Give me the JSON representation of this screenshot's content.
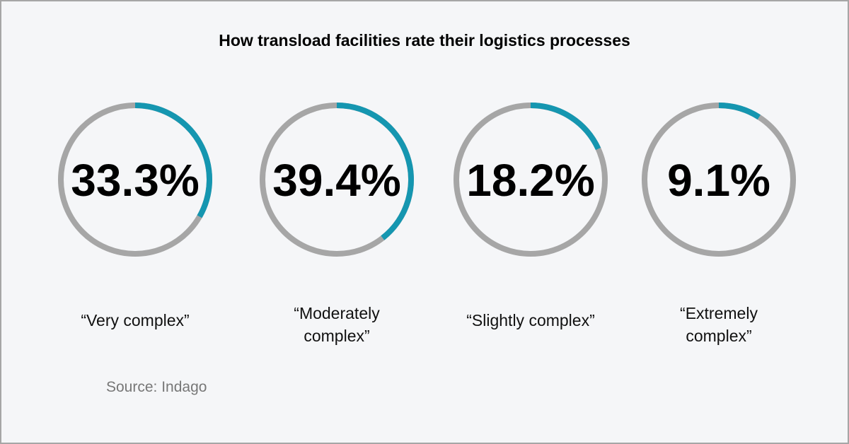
{
  "title": "How transload facilities rate their logistics processes",
  "source": "Source: Indago",
  "colors": {
    "accent": "#1596b0",
    "track": "#a6a6a6",
    "background": "#f5f6f8"
  },
  "chart_data": {
    "type": "donut-progress",
    "title": "How transload facilities rate their logistics processes",
    "items": [
      {
        "value": 33.3,
        "value_label": "33.3%",
        "label_lines": [
          "“Very complex”"
        ]
      },
      {
        "value": 39.4,
        "value_label": "39.4%",
        "label_lines": [
          "“Moderately",
          "complex”"
        ]
      },
      {
        "value": 18.2,
        "value_label": "18.2%",
        "label_lines": [
          "“Slightly complex”"
        ]
      },
      {
        "value": 9.1,
        "value_label": "9.1%",
        "label_lines": [
          "“Extremely",
          "complex”"
        ]
      }
    ]
  }
}
